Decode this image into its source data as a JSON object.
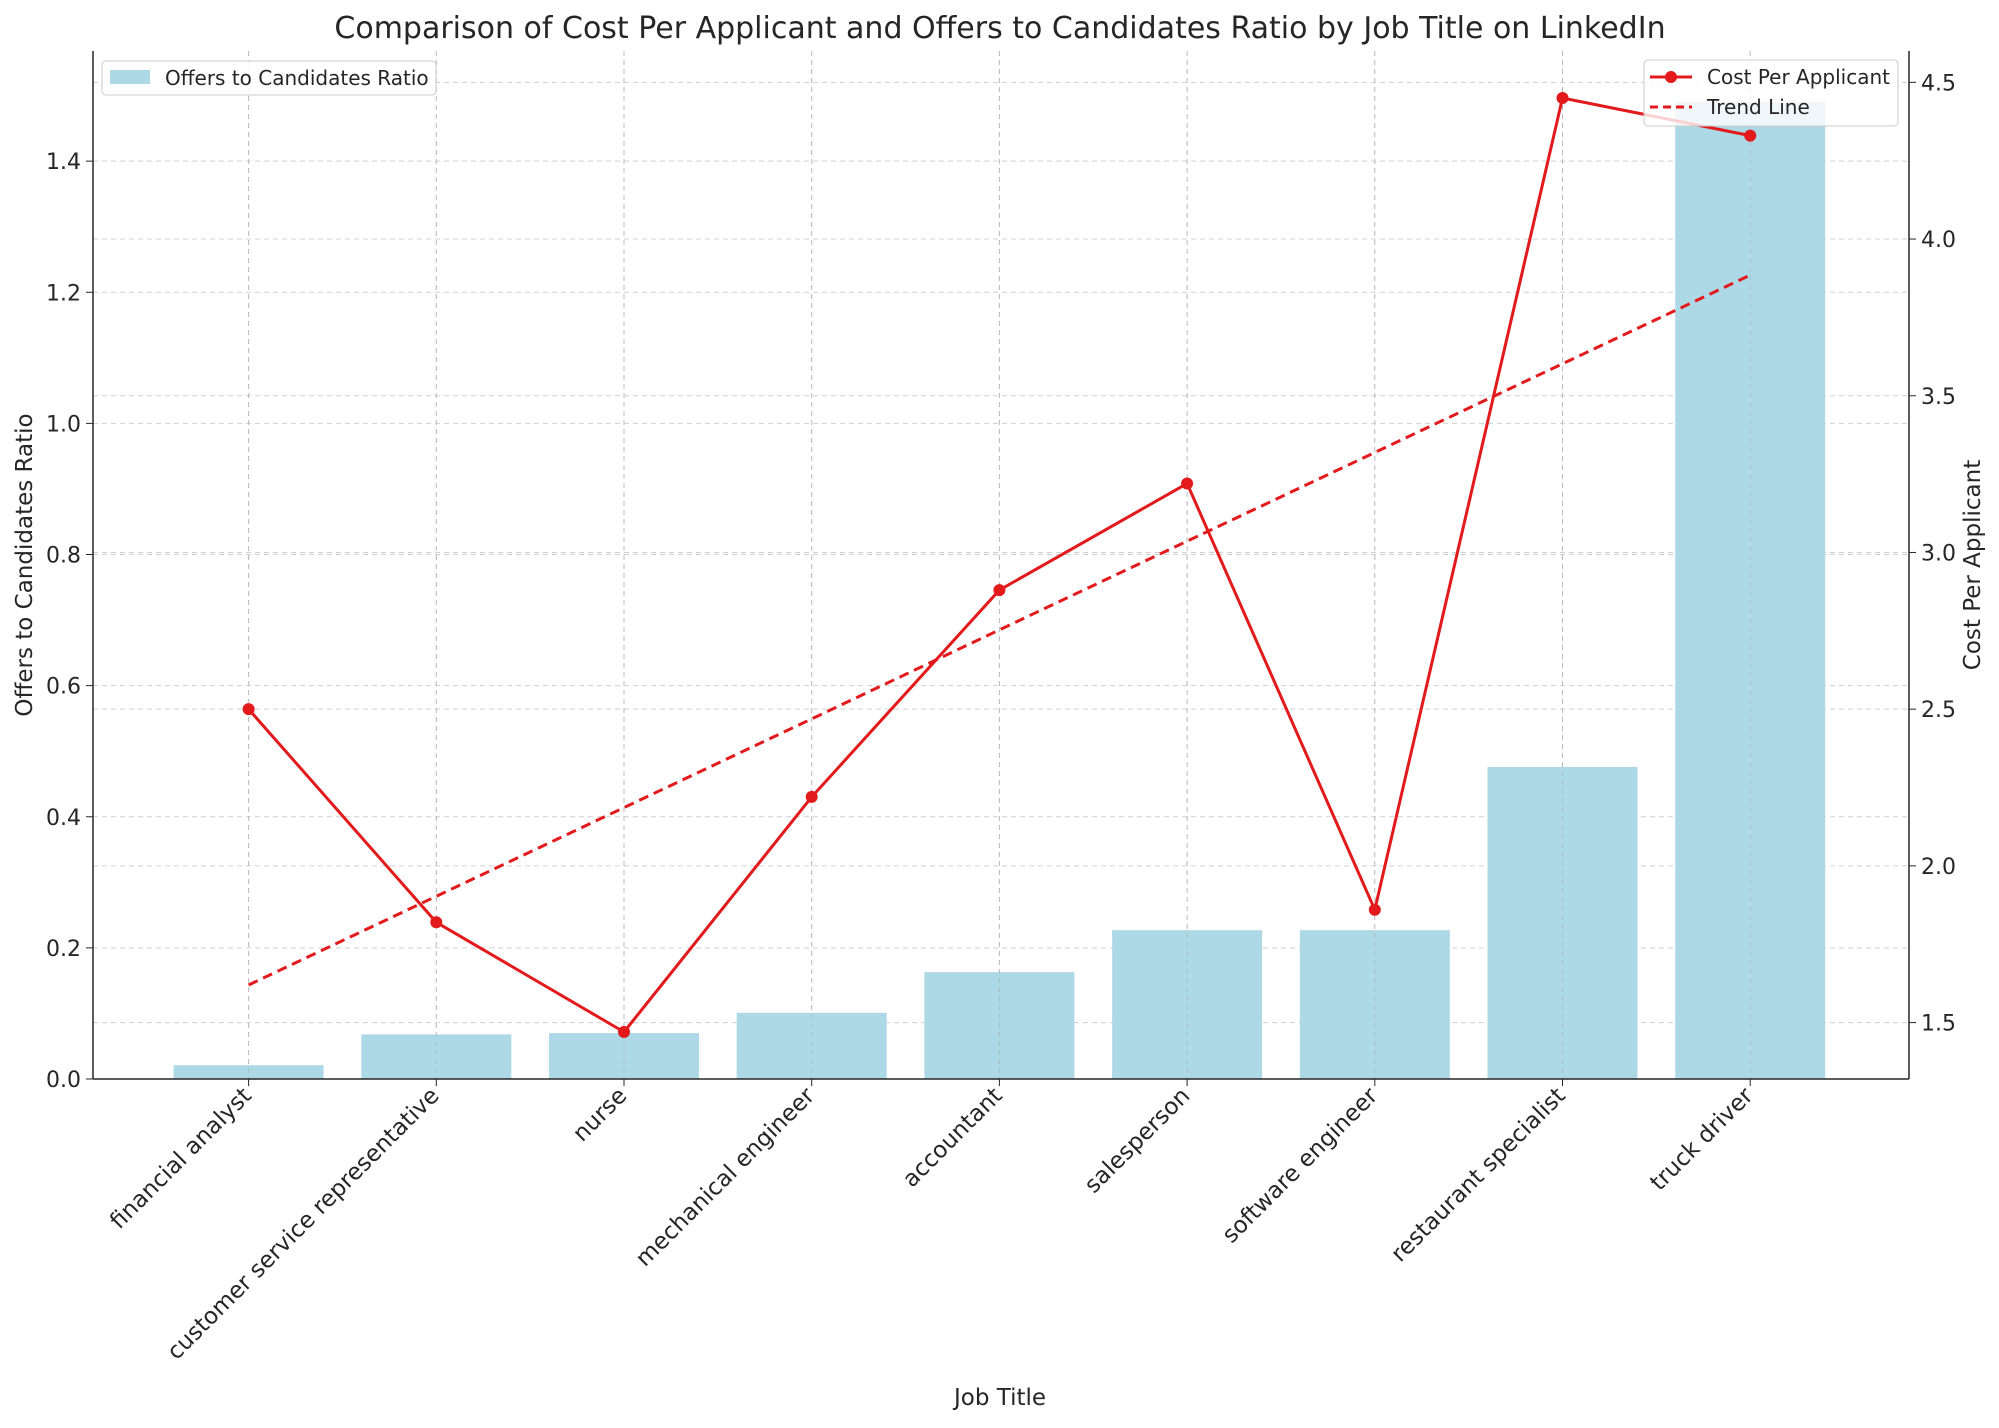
{
  "chart_data": {
    "type": "bar+line",
    "title": "Comparison of Cost Per Applicant and Offers to Candidates Ratio by Job Title on LinkedIn",
    "xlabel": "Job Title",
    "ylabel_left": "Offers to Candidates Ratio",
    "ylabel_right": "Cost Per Applicant",
    "categories": [
      "financial analyst",
      "customer service representative",
      "nurse",
      "mechanical engineer",
      "accountant",
      "salesperson",
      "software engineer",
      "restaurant specialist",
      "truck driver"
    ],
    "ylim_left": [
      0,
      1.568
    ],
    "ylim_right": [
      1.32,
      4.6
    ],
    "yticks_left": [
      "0.0",
      "0.2",
      "0.4",
      "0.6",
      "0.8",
      "1.0",
      "1.2",
      "1.4"
    ],
    "yticks_right": [
      "1.5",
      "2.0",
      "2.5",
      "3.0",
      "3.5",
      "4.0",
      "4.5"
    ],
    "grid": true,
    "series": [
      {
        "name": "Offers to Candidates Ratio",
        "type": "bar",
        "axis": "left",
        "color": "#add8e6",
        "values": [
          0.021,
          0.068,
          0.07,
          0.101,
          0.163,
          0.227,
          0.227,
          0.476,
          1.49
        ]
      },
      {
        "name": "Cost Per Applicant",
        "type": "line",
        "axis": "right",
        "color": "#e31a1c",
        "marker": "circle",
        "values": [
          2.5,
          1.82,
          1.47,
          2.22,
          2.88,
          3.22,
          1.86,
          4.45,
          4.33
        ]
      },
      {
        "name": "Trend Line",
        "type": "line",
        "axis": "right",
        "color": "#e31a1c",
        "style": "dashed",
        "values": [
          1.62,
          1.903,
          2.186,
          2.469,
          2.753,
          3.036,
          3.319,
          3.602,
          3.885
        ]
      }
    ],
    "legends": {
      "left": "top-left",
      "right": "top-right"
    }
  }
}
